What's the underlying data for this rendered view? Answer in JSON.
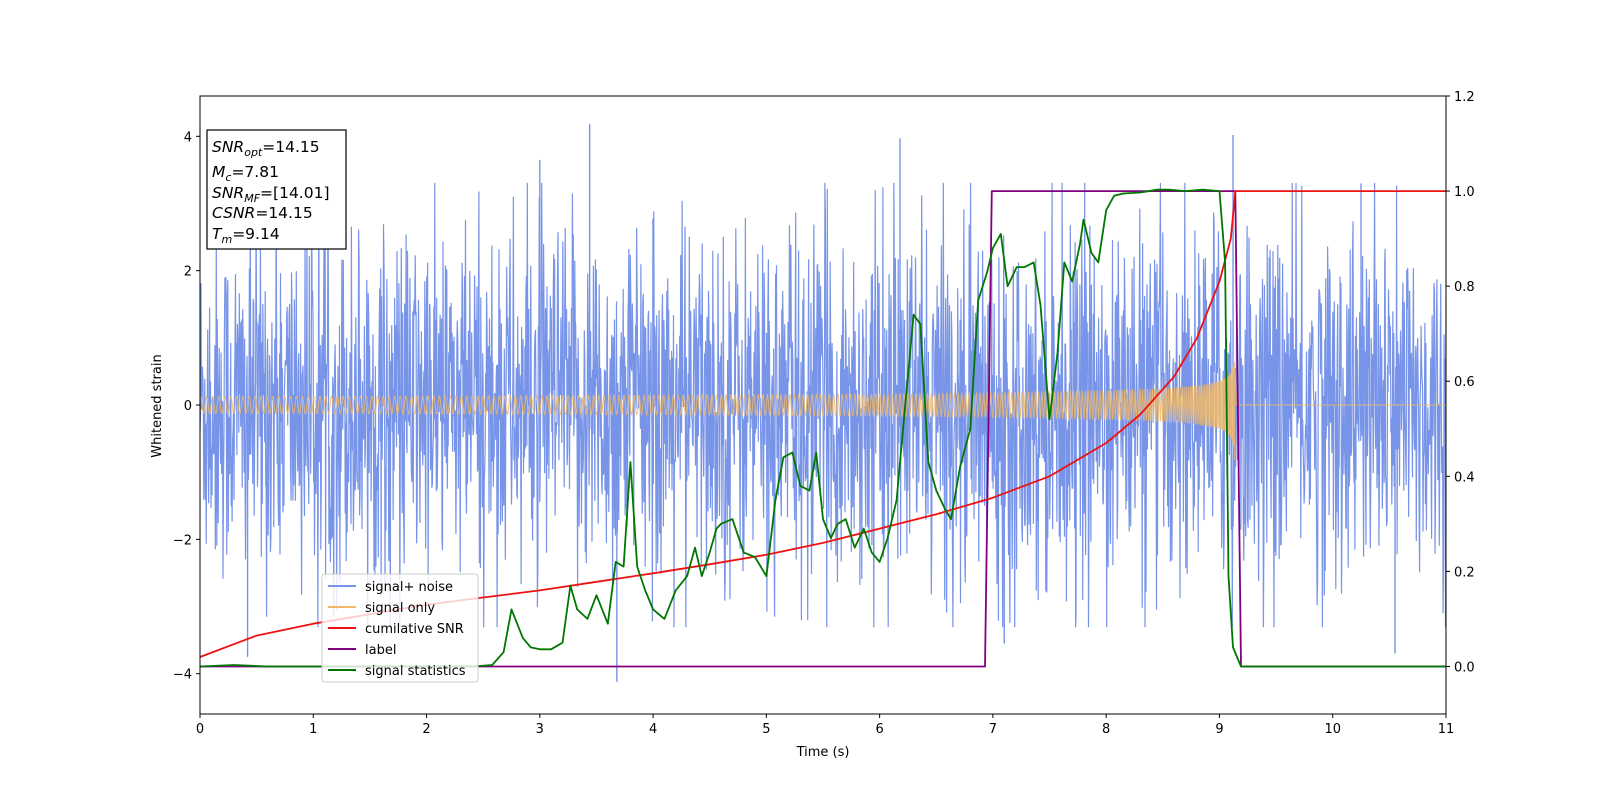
{
  "chart_data": {
    "type": "line",
    "title": "",
    "xlabel": "Time (s)",
    "ylabel": "Whitened strain",
    "y2label": "",
    "xlim": [
      0,
      11
    ],
    "ylim": [
      -4.6,
      4.6
    ],
    "y2lim": [
      -0.1,
      1.2
    ],
    "xticks": [
      0,
      1,
      2,
      3,
      4,
      5,
      6,
      7,
      8,
      9,
      10,
      11
    ],
    "yticks": [
      -4,
      -2,
      0,
      2,
      4
    ],
    "y2ticks": [
      0.0,
      0.2,
      0.4,
      0.6,
      0.8,
      1.0,
      1.2
    ],
    "xtick_labels": [
      "0",
      "1",
      "2",
      "3",
      "4",
      "5",
      "6",
      "7",
      "8",
      "9",
      "10",
      "11"
    ],
    "ytick_labels": [
      "−4",
      "−2",
      "0",
      "2",
      "4"
    ],
    "y2tick_labels": [
      "0.0",
      "0.2",
      "0.4",
      "0.6",
      "0.8",
      "1.0",
      "1.2"
    ],
    "grid": false,
    "legend_position": "lower-left",
    "info_box": {
      "lines": [
        {
          "main": "SNR",
          "sub": "opt",
          "value": "=14.15"
        },
        {
          "main": "M",
          "sub": "c",
          "value": "=7.81"
        },
        {
          "main": "SNR",
          "sub": "MF",
          "value": "=[14.01]"
        },
        {
          "main": "CSNR",
          "sub": "",
          "value": "=14.15"
        },
        {
          "main": "T",
          "sub": "m",
          "value": "=9.14"
        }
      ]
    },
    "series": [
      {
        "name": "signal+ noise",
        "color": "#7794e8",
        "axis": "left",
        "kind": "noise_band",
        "envelope_x": [
          0,
          11
        ],
        "typical_amplitude": 1.8,
        "spike_peaks": [
          {
            "x": 0.42,
            "y": -3.75
          },
          {
            "x": 3.0,
            "y": 3.65
          },
          {
            "x": 3.44,
            "y": 4.18
          },
          {
            "x": 3.68,
            "y": -4.12
          },
          {
            "x": 6.18,
            "y": 3.97
          },
          {
            "x": 7.1,
            "y": -3.55
          },
          {
            "x": 9.12,
            "y": 4.02
          },
          {
            "x": 10.25,
            "y": 3.3
          },
          {
            "x": 10.55,
            "y": -3.7
          }
        ]
      },
      {
        "name": "signal only",
        "color": "#f0b868",
        "axis": "left",
        "kind": "chirp",
        "x_end": 9.14,
        "amplitude_start": 0.05,
        "amplitude_end": 0.9
      },
      {
        "name": "cumilative SNR",
        "color": "#ee1111",
        "axis": "right",
        "x": [
          0,
          0.5,
          1,
          1.5,
          2,
          2.5,
          3,
          3.5,
          4,
          4.5,
          5,
          5.5,
          6,
          6.5,
          7,
          7.5,
          8,
          8.3,
          8.6,
          8.8,
          9.0,
          9.1,
          9.14,
          11
        ],
        "y": [
          0.02,
          0.065,
          0.09,
          0.11,
          0.13,
          0.145,
          0.16,
          0.178,
          0.196,
          0.215,
          0.235,
          0.26,
          0.29,
          0.32,
          0.355,
          0.4,
          0.47,
          0.53,
          0.61,
          0.69,
          0.81,
          0.9,
          1.0,
          1.0
        ]
      },
      {
        "name": "label",
        "color": "#800080",
        "axis": "right",
        "x": [
          0,
          6.93,
          6.99,
          9.14,
          9.19,
          11
        ],
        "y": [
          0,
          0,
          1,
          1,
          0,
          0
        ]
      },
      {
        "name": "signal statistics",
        "color": "#007700",
        "axis": "right",
        "x": [
          0,
          0.3,
          0.6,
          1.0,
          1.5,
          2.0,
          2.4,
          2.58,
          2.68,
          2.75,
          2.85,
          2.92,
          3.0,
          3.1,
          3.2,
          3.27,
          3.33,
          3.42,
          3.5,
          3.6,
          3.67,
          3.74,
          3.8,
          3.86,
          3.93,
          4.0,
          4.1,
          4.2,
          4.3,
          4.37,
          4.43,
          4.5,
          4.56,
          4.6,
          4.7,
          4.8,
          4.9,
          5.0,
          5.08,
          5.15,
          5.23,
          5.3,
          5.38,
          5.44,
          5.5,
          5.57,
          5.63,
          5.7,
          5.78,
          5.86,
          5.93,
          6.0,
          6.07,
          6.15,
          6.23,
          6.3,
          6.36,
          6.43,
          6.5,
          6.58,
          6.63,
          6.71,
          6.8,
          6.87,
          6.95,
          7.0,
          7.07,
          7.13,
          7.21,
          7.28,
          7.36,
          7.42,
          7.5,
          7.57,
          7.63,
          7.7,
          7.77,
          7.8,
          7.87,
          7.93,
          8.0,
          8.07,
          8.15,
          8.3,
          8.45,
          8.55,
          8.7,
          8.85,
          9.0,
          9.05,
          9.08,
          9.12,
          9.19,
          9.3,
          11
        ],
        "y": [
          0,
          0.003,
          0.0,
          0.0,
          0.0,
          0.0,
          0.0,
          0.003,
          0.03,
          0.12,
          0.06,
          0.04,
          0.036,
          0.036,
          0.05,
          0.17,
          0.12,
          0.1,
          0.15,
          0.09,
          0.22,
          0.21,
          0.43,
          0.21,
          0.16,
          0.12,
          0.1,
          0.16,
          0.19,
          0.25,
          0.19,
          0.24,
          0.29,
          0.3,
          0.31,
          0.24,
          0.23,
          0.19,
          0.35,
          0.44,
          0.45,
          0.38,
          0.37,
          0.45,
          0.31,
          0.27,
          0.3,
          0.31,
          0.25,
          0.29,
          0.24,
          0.22,
          0.27,
          0.35,
          0.56,
          0.74,
          0.72,
          0.43,
          0.37,
          0.33,
          0.31,
          0.42,
          0.5,
          0.77,
          0.83,
          0.88,
          0.91,
          0.8,
          0.84,
          0.84,
          0.85,
          0.76,
          0.52,
          0.66,
          0.85,
          0.81,
          0.89,
          0.94,
          0.87,
          0.85,
          0.96,
          0.99,
          0.995,
          0.997,
          1.003,
          1.003,
          1.0,
          1.003,
          1.0,
          0.85,
          0.19,
          0.04,
          0.0,
          0.0,
          0.0
        ]
      }
    ]
  }
}
